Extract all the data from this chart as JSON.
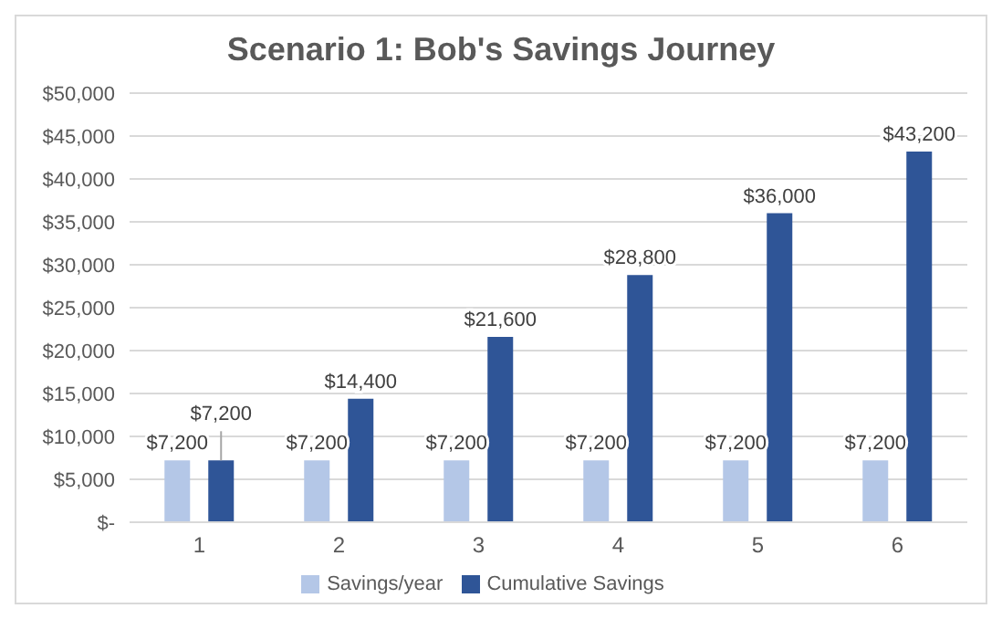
{
  "chart_data": {
    "type": "bar",
    "title": "Scenario 1: Bob's Savings Journey",
    "categories": [
      "1",
      "2",
      "3",
      "4",
      "5",
      "6"
    ],
    "series": [
      {
        "name": "Savings/year",
        "color": "#b4c7e7",
        "values": [
          7200,
          7200,
          7200,
          7200,
          7200,
          7200
        ],
        "value_labels": [
          "$7,200",
          "$7,200",
          "$7,200",
          "$7,200",
          "$7,200",
          "$7,200"
        ]
      },
      {
        "name": "Cumulative Savings",
        "color": "#2f5597",
        "values": [
          7200,
          14400,
          21600,
          28800,
          36000,
          43200
        ],
        "value_labels": [
          "$7,200",
          "$14,400",
          "$21,600",
          "$28,800",
          "$36,000",
          "$43,200"
        ]
      }
    ],
    "ylim": [
      0,
      50000
    ],
    "yticks": [
      {
        "value": 0,
        "label": "$-"
      },
      {
        "value": 5000,
        "label": "$5,000"
      },
      {
        "value": 10000,
        "label": "$10,000"
      },
      {
        "value": 15000,
        "label": "$15,000"
      },
      {
        "value": 20000,
        "label": "$20,000"
      },
      {
        "value": 25000,
        "label": "$25,000"
      },
      {
        "value": 30000,
        "label": "$30,000"
      },
      {
        "value": 35000,
        "label": "$35,000"
      },
      {
        "value": 40000,
        "label": "$40,000"
      },
      {
        "value": 45000,
        "label": "$45,000"
      },
      {
        "value": 50000,
        "label": "$50,000"
      }
    ],
    "grid": "y",
    "legend": "bottom"
  }
}
